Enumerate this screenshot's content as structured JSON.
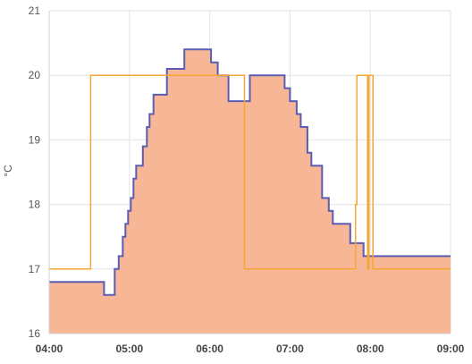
{
  "chart_data": {
    "type": "area",
    "ylabel": "°C",
    "xlabel": "",
    "ylim": [
      16,
      21
    ],
    "yticks": [
      16,
      17,
      18,
      19,
      20,
      21
    ],
    "xlim": [
      "04:00",
      "09:00"
    ],
    "xticks": [
      "04:00",
      "05:00",
      "06:00",
      "07:00",
      "08:00",
      "09:00"
    ],
    "grid": true,
    "legend": "none",
    "series": [
      {
        "style": "filled-step-area",
        "fill_color": "#f7b796",
        "line_color": "#5b5db3",
        "points": [
          [
            "04:00",
            16.8
          ],
          [
            "04:41",
            16.6
          ],
          [
            "04:49",
            17.0
          ],
          [
            "04:52",
            17.2
          ],
          [
            "04:55",
            17.5
          ],
          [
            "04:57",
            17.7
          ],
          [
            "04:59",
            17.9
          ],
          [
            "05:01",
            18.1
          ],
          [
            "05:03",
            18.4
          ],
          [
            "05:05",
            18.6
          ],
          [
            "05:10",
            18.9
          ],
          [
            "05:13",
            19.2
          ],
          [
            "05:15",
            19.4
          ],
          [
            "05:18",
            19.7
          ],
          [
            "05:28",
            20.1
          ],
          [
            "05:41",
            20.4
          ],
          [
            "06:01",
            20.2
          ],
          [
            "06:06",
            20.0
          ],
          [
            "06:14",
            19.6
          ],
          [
            "06:30",
            20.0
          ],
          [
            "06:56",
            19.8
          ],
          [
            "07:00",
            19.6
          ],
          [
            "07:05",
            19.4
          ],
          [
            "07:08",
            19.2
          ],
          [
            "07:13",
            18.8
          ],
          [
            "07:16",
            18.6
          ],
          [
            "07:24",
            18.1
          ],
          [
            "07:29",
            17.9
          ],
          [
            "07:32",
            17.7
          ],
          [
            "07:45",
            17.4
          ],
          [
            "07:55",
            17.2
          ],
          [
            "09:00",
            17.2
          ]
        ]
      },
      {
        "style": "step-line",
        "line_color": "#f6a733",
        "points": [
          [
            "04:00",
            17.0
          ],
          [
            "04:31",
            20.0
          ],
          [
            "06:26",
            17.0
          ],
          [
            "07:49",
            18.0
          ],
          [
            "07:50",
            20.0
          ],
          [
            "07:58",
            17.0
          ],
          [
            "07:59",
            20.0
          ],
          [
            "08:02",
            17.0
          ],
          [
            "09:00",
            17.0
          ]
        ]
      }
    ]
  }
}
